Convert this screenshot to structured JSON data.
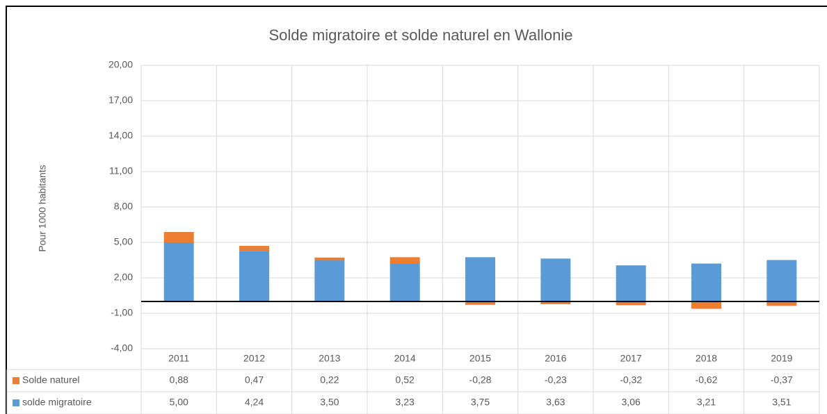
{
  "chart_data": {
    "type": "bar",
    "stacked": true,
    "title": "Solde migratoire et solde naturel en Wallonie",
    "ylabel": "Pour 1000 habitants",
    "categories": [
      "2011",
      "2012",
      "2013",
      "2014",
      "2015",
      "2016",
      "2017",
      "2018",
      "2019"
    ],
    "series": [
      {
        "name": "Solde naturel",
        "color": "#ed7d31",
        "values": [
          0.88,
          0.47,
          0.22,
          0.52,
          -0.28,
          -0.23,
          -0.32,
          -0.62,
          -0.37
        ],
        "value_labels": [
          "0,88",
          "0,47",
          "0,22",
          "0,52",
          "-0,28",
          "-0,23",
          "-0,32",
          "-0,62",
          "-0,37"
        ]
      },
      {
        "name": "solde migratoire",
        "color": "#5b9bd5",
        "values": [
          5.0,
          4.24,
          3.5,
          3.23,
          3.75,
          3.63,
          3.06,
          3.21,
          3.51
        ],
        "value_labels": [
          "5,00",
          "4,24",
          "3,50",
          "3,23",
          "3,75",
          "3,63",
          "3,06",
          "3,21",
          "3,51"
        ]
      }
    ],
    "ylim": [
      -4,
      20
    ],
    "yticks": [
      {
        "value": 20,
        "label": "20,00"
      },
      {
        "value": 17,
        "label": "17,00"
      },
      {
        "value": 14,
        "label": "14,00"
      },
      {
        "value": 11,
        "label": "11,00"
      },
      {
        "value": 8,
        "label": "8,00"
      },
      {
        "value": 5,
        "label": "5,00"
      },
      {
        "value": 2,
        "label": "2,00"
      },
      {
        "value": -1,
        "label": "-1,00"
      },
      {
        "value": -4,
        "label": "-4,00"
      }
    ],
    "grid": true
  }
}
